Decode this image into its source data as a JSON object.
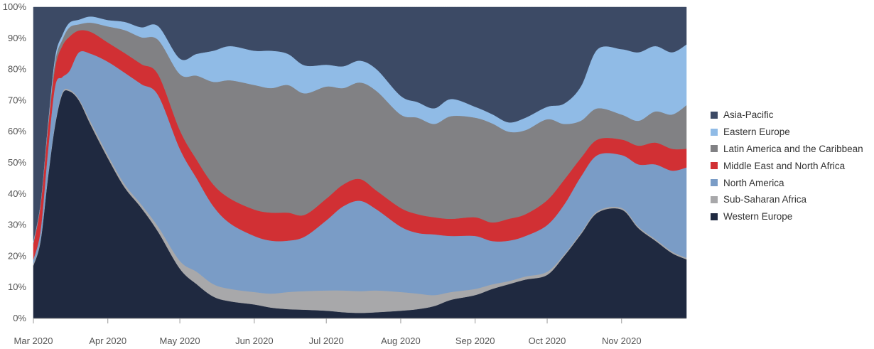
{
  "chart_data": {
    "type": "area",
    "stacked": true,
    "normalized": true,
    "title": "",
    "xlabel": "",
    "ylabel": "",
    "ylim": [
      0,
      100
    ],
    "y_ticks": [
      "0%",
      "10%",
      "20%",
      "30%",
      "40%",
      "50%",
      "60%",
      "70%",
      "80%",
      "90%",
      "100%"
    ],
    "x_ticks": [
      "Mar 2020",
      "Apr 2020",
      "May 2020",
      "Jun 2020",
      "Jul 2020",
      "Aug 2020",
      "Sep 2020",
      "Oct 2020",
      "Nov 2020"
    ],
    "x_tick_dates": [
      "2020-03-01",
      "2020-04-01",
      "2020-05-01",
      "2020-06-01",
      "2020-07-01",
      "2020-08-01",
      "2020-09-01",
      "2020-10-01",
      "2020-11-01"
    ],
    "x_range": [
      "2020-03-01",
      "2020-11-28"
    ],
    "legend_position": "right",
    "dates": [
      "2020-03-01",
      "2020-03-04",
      "2020-03-07",
      "2020-03-10",
      "2020-03-13",
      "2020-03-16",
      "2020-03-20",
      "2020-03-25",
      "2020-04-01",
      "2020-04-08",
      "2020-04-15",
      "2020-04-22",
      "2020-05-01",
      "2020-05-08",
      "2020-05-15",
      "2020-05-22",
      "2020-06-01",
      "2020-06-08",
      "2020-06-15",
      "2020-06-22",
      "2020-07-01",
      "2020-07-08",
      "2020-07-15",
      "2020-07-22",
      "2020-08-01",
      "2020-08-08",
      "2020-08-15",
      "2020-08-22",
      "2020-09-01",
      "2020-09-08",
      "2020-09-15",
      "2020-09-22",
      "2020-10-01",
      "2020-10-08",
      "2020-10-15",
      "2020-10-22",
      "2020-11-01",
      "2020-11-08",
      "2020-11-15",
      "2020-11-22",
      "2020-11-28"
    ],
    "series": [
      {
        "name": "Western Europe",
        "color": "#1f2940",
        "values": [
          17,
          25,
          45,
          62,
          72,
          73,
          70,
          62,
          50,
          40,
          33,
          25,
          16,
          11,
          7,
          5.5,
          4.5,
          3.5,
          3,
          2.8,
          2.5,
          2,
          1.8,
          2,
          2.5,
          3,
          4,
          6,
          7.5,
          9.5,
          11,
          12.5,
          14,
          20,
          27,
          34,
          35,
          29,
          25,
          21,
          19
        ]
      },
      {
        "name": "Sub-Saharan Africa",
        "color": "#a8a8aa",
        "values": [
          0.5,
          0.5,
          0.5,
          0.5,
          0.5,
          0.5,
          0.5,
          1,
          1,
          1,
          1,
          1.5,
          2.5,
          4,
          4,
          4,
          4,
          4.5,
          5.5,
          6,
          6.5,
          7,
          7,
          7,
          6,
          5,
          3.5,
          2.5,
          2,
          1.5,
          1,
          1,
          1,
          0.5,
          0.5,
          0.5,
          0.5,
          0.5,
          0.5,
          0.5,
          0.5
        ]
      },
      {
        "name": "North America",
        "color": "#7a9cc6",
        "values": [
          1.5,
          3,
          8,
          12,
          5,
          6,
          15,
          22,
          29,
          34,
          36,
          38,
          36,
          30,
          25,
          21,
          18,
          17,
          16.5,
          17.5,
          22.5,
          27,
          29,
          26,
          21,
          19.5,
          19.5,
          18,
          17,
          14,
          13,
          13,
          15,
          16,
          18,
          18,
          17,
          20,
          24,
          26,
          29
        ]
      },
      {
        "name": "Middle East and North Africa",
        "color": "#d13034",
        "values": [
          5,
          8,
          7,
          6,
          10,
          11,
          7,
          7,
          6,
          6,
          6,
          6,
          6,
          6,
          7,
          8,
          8.5,
          9,
          9,
          7,
          7,
          7,
          7,
          6,
          6,
          6,
          5.5,
          5.5,
          6,
          6,
          7,
          7,
          8,
          8,
          6,
          5,
          5,
          6,
          7,
          7,
          6
        ]
      },
      {
        "name": "Latin America and the Caribbean",
        "color": "#818184",
        "values": [
          0.5,
          0.5,
          1,
          2,
          2,
          3,
          2,
          3,
          5,
          7,
          8,
          10,
          18,
          27,
          33,
          38,
          40,
          40,
          41,
          39,
          36,
          31,
          31,
          32,
          30,
          31,
          30,
          33,
          32,
          32,
          28,
          27,
          26,
          18,
          12,
          10,
          8,
          8,
          10,
          11,
          14
        ]
      },
      {
        "name": "Eastern Europe",
        "color": "#90bbe6",
        "values": [
          0.5,
          0.5,
          1,
          1.5,
          1.5,
          1.5,
          1.5,
          2,
          2,
          2.5,
          3,
          4,
          5,
          7,
          10,
          11,
          11,
          12,
          10,
          9,
          7,
          7,
          7,
          7,
          6,
          5,
          5,
          5.5,
          3.5,
          3,
          3,
          4,
          4,
          6.5,
          11,
          19,
          21,
          22,
          21,
          20,
          19.5
        ]
      },
      {
        "name": "Asia-Pacific",
        "color": "#3c4a65",
        "values": [
          75,
          62.5,
          37.5,
          16,
          9,
          5,
          4,
          3,
          4,
          4.5,
          6,
          5.5,
          16.5,
          15,
          14,
          12.5,
          14,
          14,
          15,
          18.7,
          18.5,
          19,
          17.2,
          20,
          28.5,
          30.5,
          32.5,
          29.5,
          32,
          34.5,
          37,
          35.5,
          32,
          31,
          25.5,
          13.5,
          13.5,
          14.5,
          12.5,
          14.5,
          12
        ]
      }
    ]
  }
}
